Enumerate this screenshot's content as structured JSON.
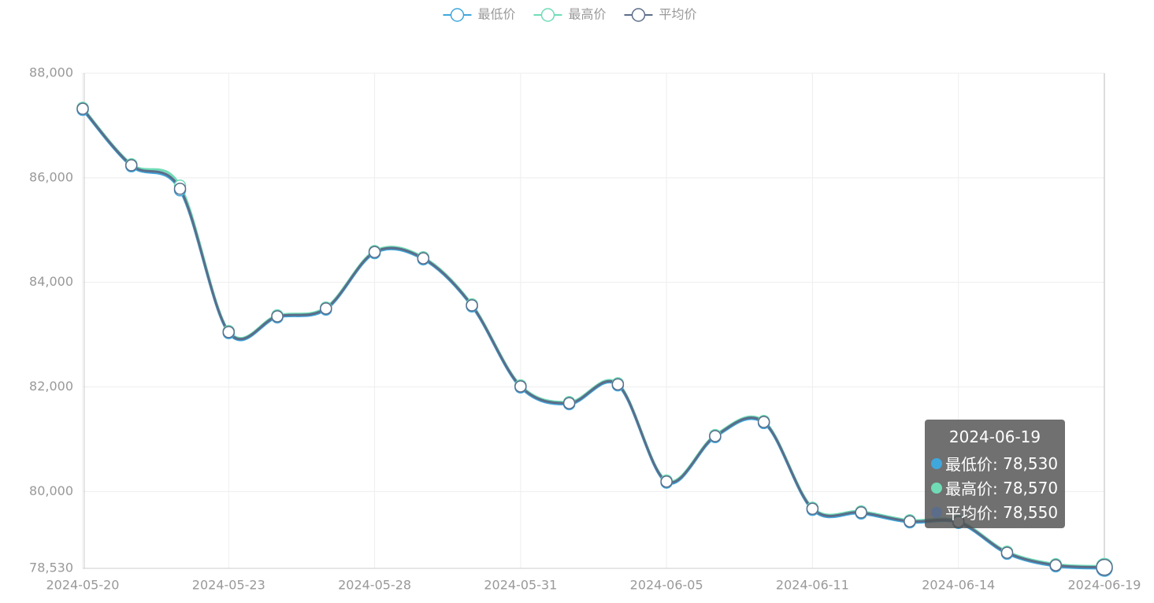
{
  "chart_data": {
    "type": "line",
    "smooth": true,
    "categories": [
      "2024-05-20",
      null,
      null,
      "2024-05-23",
      null,
      null,
      "2024-05-28",
      null,
      null,
      "2024-05-31",
      null,
      null,
      "2024-06-05",
      null,
      null,
      "2024-06-11",
      null,
      null,
      "2024-06-14",
      null,
      null,
      "2024-06-19"
    ],
    "series": [
      {
        "name": "最低价",
        "color": "#3fa7dc",
        "values": [
          87300,
          86220,
          85760,
          83030,
          83330,
          83480,
          84560,
          84440,
          83540,
          81990,
          81670,
          82030,
          80170,
          81040,
          81310,
          79650,
          79580,
          79410,
          79400,
          78810,
          78570,
          78530
        ]
      },
      {
        "name": "最高价",
        "color": "#6fdcb6",
        "values": [
          87340,
          86260,
          85850,
          83070,
          83370,
          83520,
          84600,
          84480,
          83580,
          82030,
          81710,
          82070,
          80210,
          81080,
          81350,
          79690,
          79620,
          79450,
          79440,
          78850,
          78610,
          78570
        ]
      },
      {
        "name": "平均价",
        "color": "#5b6d8a",
        "values": [
          87320,
          86240,
          85790,
          83050,
          83350,
          83500,
          84580,
          84460,
          83560,
          82010,
          81690,
          82050,
          80190,
          81060,
          81330,
          79670,
          79600,
          79430,
          79420,
          78830,
          78590,
          78550
        ]
      }
    ],
    "ylim": [
      78530,
      88000
    ],
    "yticks": [
      {
        "value": 78530,
        "label": "78,530"
      },
      {
        "value": 80000,
        "label": "80,000"
      },
      {
        "value": 82000,
        "label": "82,000"
      },
      {
        "value": 84000,
        "label": "84,000"
      },
      {
        "value": 86000,
        "label": "86,000"
      },
      {
        "value": 88000,
        "label": "88,000"
      }
    ],
    "grid": true,
    "legend": "top",
    "tooltip": {
      "index": 21,
      "labels": [
        "78,530",
        "78,570",
        "78,550"
      ]
    }
  }
}
